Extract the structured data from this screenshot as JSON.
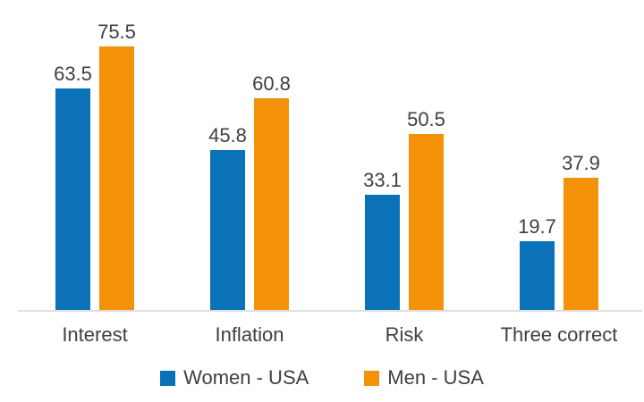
{
  "chart_data": {
    "type": "bar",
    "categories": [
      "Interest",
      "Inflation",
      "Risk",
      "Three correct"
    ],
    "series": [
      {
        "name": "Women - USA",
        "color": "#0b72b8",
        "values": [
          63.5,
          45.8,
          33.1,
          19.7
        ]
      },
      {
        "name": "Men - USA",
        "color": "#f39208",
        "values": [
          75.5,
          60.8,
          50.5,
          37.9
        ]
      }
    ],
    "title": "",
    "xlabel": "",
    "ylabel": "",
    "ylim": [
      0,
      80
    ],
    "grid": "off",
    "legend_position": "bottom",
    "value_labels_shown": true,
    "baseline_color": "#e0e0e0",
    "text_color": "#404040",
    "background_color": "#ffffff"
  }
}
